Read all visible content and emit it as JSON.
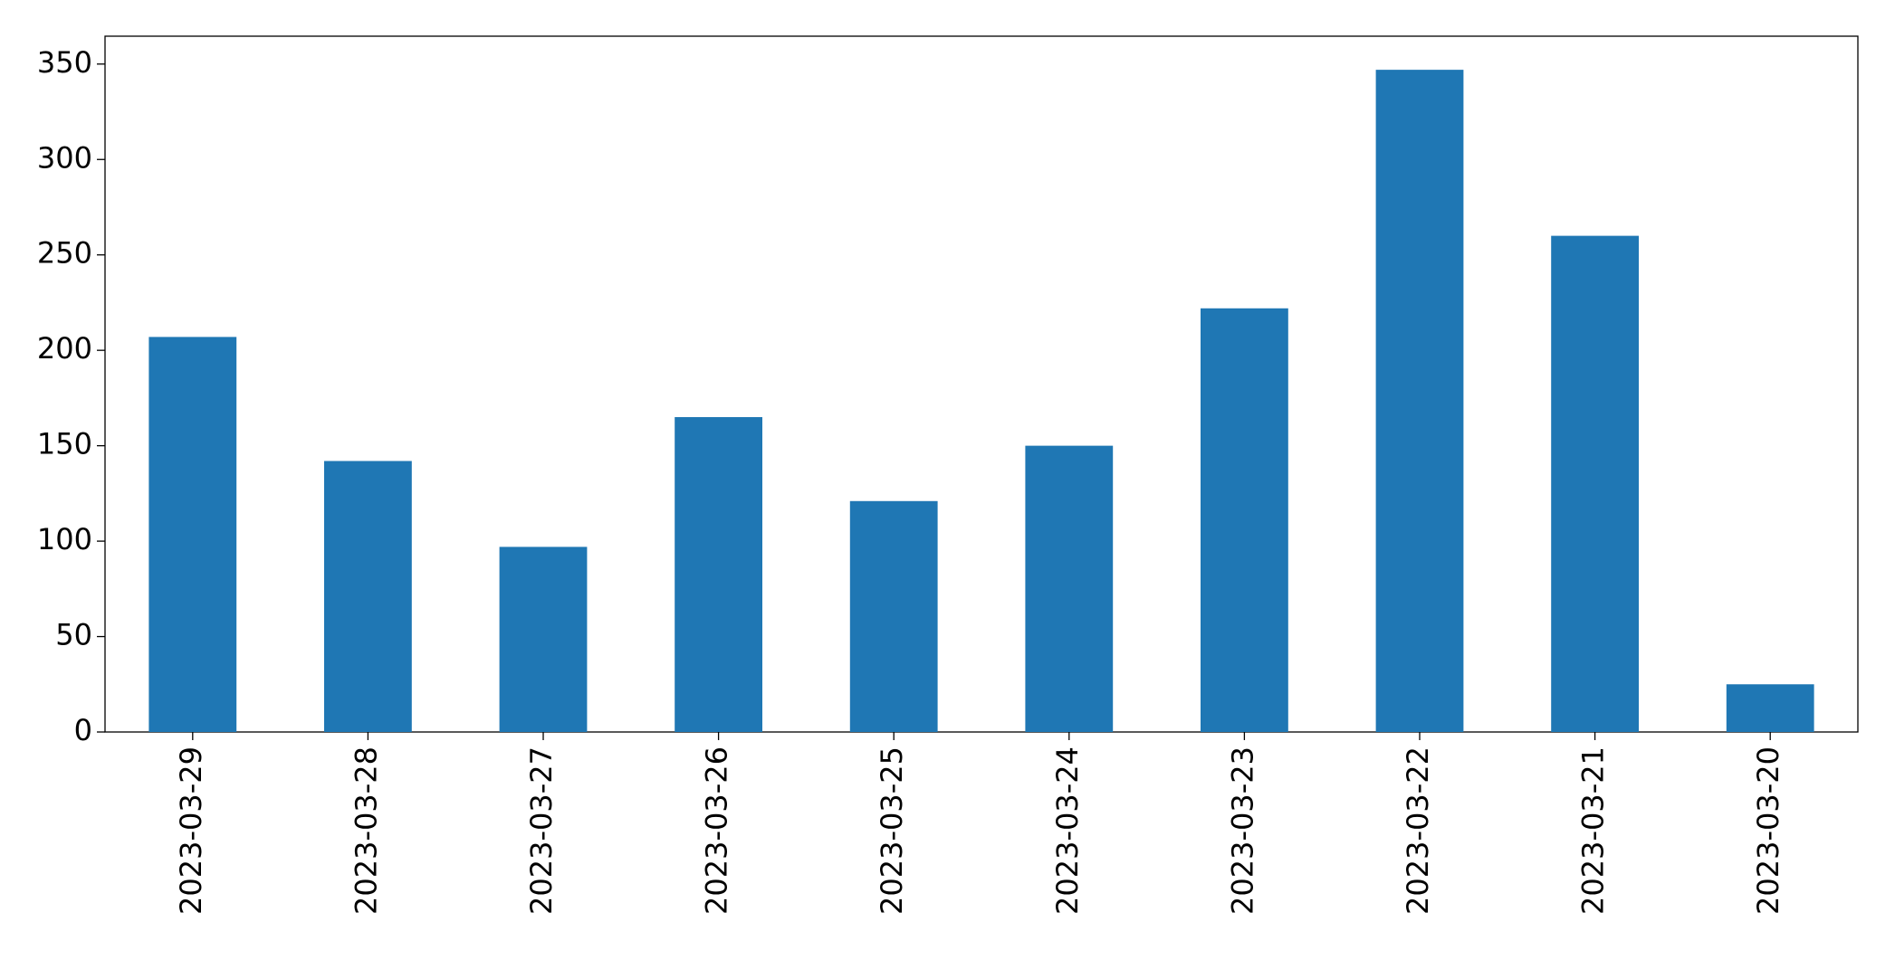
{
  "chart_data": {
    "type": "bar",
    "categories": [
      "2023-03-29",
      "2023-03-28",
      "2023-03-27",
      "2023-03-26",
      "2023-03-25",
      "2023-03-24",
      "2023-03-23",
      "2023-03-22",
      "2023-03-21",
      "2023-03-20"
    ],
    "values": [
      207,
      142,
      97,
      165,
      121,
      150,
      222,
      347,
      260,
      25
    ],
    "color": "#1f77b4",
    "ylim": [
      0,
      364.6
    ],
    "yticks": [
      0,
      50,
      100,
      150,
      200,
      250,
      300,
      350
    ],
    "grid": false
  }
}
